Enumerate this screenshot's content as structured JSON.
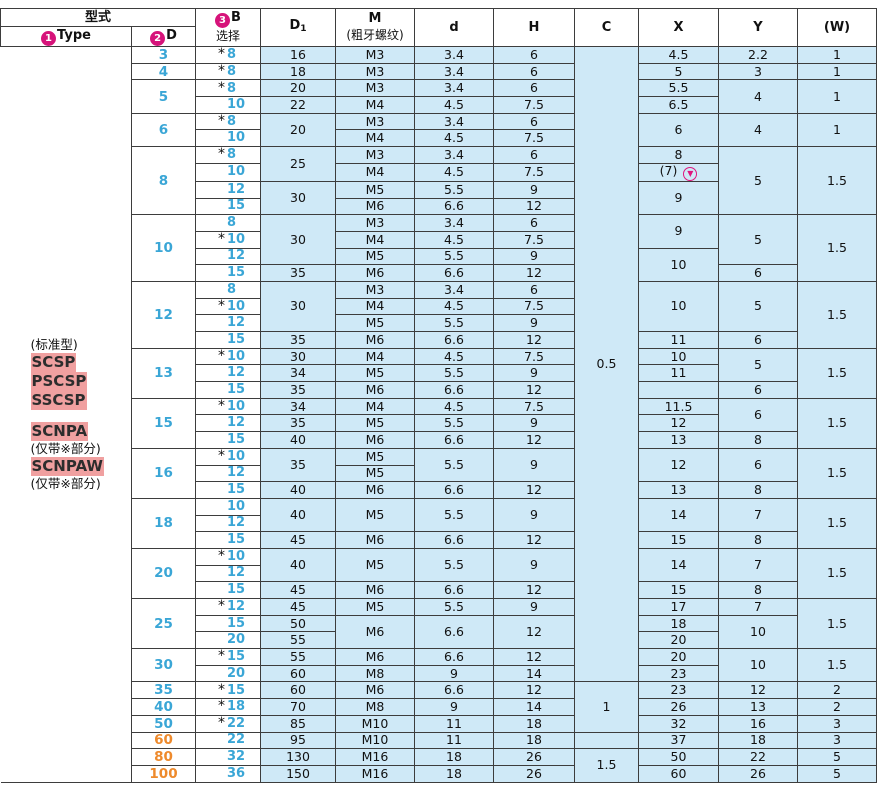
{
  "header": {
    "form_label": "型式",
    "type_num": "1",
    "type_label": "Type",
    "d_num": "2",
    "d_label": "D",
    "b_num": "3",
    "b_label": "B",
    "b_sub": "选择",
    "d1_main": "D",
    "d1_sub": "1",
    "m_label": "M",
    "m_sub": "(粗牙螺纹)",
    "d_small": "d",
    "h_label": "H",
    "c_label": "C",
    "x_label": "X",
    "y_label": "Y",
    "w_label": "(W)"
  },
  "types": {
    "standard": "(标准型)",
    "t1": "SCSP",
    "t2": "PSCSP",
    "t3": "SSCSP",
    "t4": "SCNPA",
    "t4_note": "(仅带※部分)",
    "t5": "SCNPAW",
    "t5_note": "(仅带※部分)"
  },
  "asterisk": "*",
  "x_alt_icon": "pin-icon",
  "rows": [
    {
      "D": "3",
      "B": "8",
      "s": true,
      "D1": "16",
      "M": "M3",
      "d": "3.4",
      "H": "6",
      "C": "0.5",
      "X": "4.5",
      "Y": "2.2",
      "W": "1"
    },
    {
      "D": "4",
      "B": "8",
      "s": true,
      "D1": "18",
      "M": "M3",
      "d": "3.4",
      "H": "6",
      "X": "5",
      "Y": "3",
      "W": "1"
    },
    {
      "D": "5",
      "B": "8",
      "s": true,
      "D1": "20",
      "M": "M3",
      "d": "3.4",
      "H": "6",
      "X": "5.5",
      "Y": "4",
      "W": "1"
    },
    {
      "B": "10",
      "s": false,
      "D1": "22",
      "M": "M4",
      "d": "4.5",
      "H": "7.5",
      "X": "6.5"
    },
    {
      "D": "6",
      "B": "8",
      "s": true,
      "D1": "20",
      "M": "M3",
      "d": "3.4",
      "H": "6",
      "X": "6",
      "Y": "4",
      "W": "1"
    },
    {
      "B": "10",
      "s": false,
      "M": "M4",
      "d": "4.5",
      "H": "7.5"
    },
    {
      "D": "8",
      "B": "8",
      "s": true,
      "D1": "25",
      "M": "M3",
      "d": "3.4",
      "H": "6",
      "X": "8",
      "Y": "5",
      "W": "1.5"
    },
    {
      "B": "10",
      "s": false,
      "M": "M4",
      "d": "4.5",
      "H": "7.5",
      "X_alt": "(7)"
    },
    {
      "B": "12",
      "s": false,
      "D1": "30",
      "M": "M5",
      "d": "5.5",
      "H": "9",
      "X": "9"
    },
    {
      "B": "15",
      "s": false,
      "M": "M6",
      "d": "6.6",
      "H": "12"
    },
    {
      "D": "10",
      "B": "8",
      "s": false,
      "D1": "30",
      "M": "M3",
      "d": "3.4",
      "H": "6",
      "X": "9",
      "Y": "5",
      "W": "1.5"
    },
    {
      "B": "10",
      "s": true,
      "M": "M4",
      "d": "4.5",
      "H": "7.5"
    },
    {
      "B": "12",
      "s": false,
      "M": "M5",
      "d": "5.5",
      "H": "9",
      "X": "10"
    },
    {
      "B": "15",
      "s": false,
      "D1": "35",
      "M": "M6",
      "d": "6.6",
      "H": "12",
      "Y": "6"
    },
    {
      "D": "12",
      "B": "8",
      "s": false,
      "D1": "30",
      "M": "M3",
      "d": "3.4",
      "H": "6",
      "X": "10",
      "Y": "5",
      "W": "1.5"
    },
    {
      "B": "10",
      "s": true,
      "M": "M4",
      "d": "4.5",
      "H": "7.5"
    },
    {
      "B": "12",
      "s": false,
      "M": "M5",
      "d": "5.5",
      "H": "9"
    },
    {
      "B": "15",
      "s": false,
      "D1": "35",
      "M": "M6",
      "d": "6.6",
      "H": "12",
      "X": "11",
      "Y": "6"
    },
    {
      "D": "13",
      "B": "10",
      "s": true,
      "D1": "30",
      "M": "M4",
      "d": "4.5",
      "H": "7.5",
      "X": "10",
      "Y": "5",
      "W": "1.5"
    },
    {
      "B": "12",
      "s": false,
      "D1": "34",
      "M": "M5",
      "d": "5.5",
      "H": "9",
      "X": "11"
    },
    {
      "B": "15",
      "s": false,
      "D1": "35",
      "M": "M6",
      "d": "6.6",
      "H": "12",
      "Y": "6"
    },
    {
      "D": "15",
      "B": "10",
      "s": true,
      "D1": "34",
      "M": "M4",
      "d": "4.5",
      "H": "7.5",
      "X": "11.5",
      "Y": "6",
      "W": "1.5"
    },
    {
      "B": "12",
      "s": false,
      "D1": "35",
      "M": "M5",
      "d": "5.5",
      "H": "9",
      "X": "12"
    },
    {
      "B": "15",
      "s": false,
      "D1": "40",
      "M": "M6",
      "d": "6.6",
      "H": "12",
      "X": "13",
      "Y": "8"
    },
    {
      "D": "16",
      "B": "10",
      "s": true,
      "D1": "35",
      "M": "M5",
      "d": "5.5",
      "H": "9",
      "X": "12",
      "Y": "6",
      "W": "1.5"
    },
    {
      "B": "12",
      "s": false,
      "M": "M5"
    },
    {
      "B": "15",
      "s": false,
      "D1": "40",
      "M": "M6",
      "d": "6.6",
      "H": "12",
      "X": "13",
      "Y": "8"
    },
    {
      "D": "18",
      "B": "10",
      "s": false,
      "D1": "40",
      "M": "M5",
      "d": "5.5",
      "H": "9",
      "X": "14",
      "Y": "7",
      "W": "1.5"
    },
    {
      "B": "12",
      "s": false
    },
    {
      "B": "15",
      "s": false,
      "D1": "45",
      "M": "M6",
      "d": "6.6",
      "H": "12",
      "X": "15",
      "Y": "8"
    },
    {
      "D": "20",
      "B": "10",
      "s": true,
      "D1": "40",
      "M": "M5",
      "d": "5.5",
      "H": "9",
      "X": "14",
      "Y": "7",
      "W": "1.5"
    },
    {
      "B": "12",
      "s": false
    },
    {
      "B": "15",
      "s": false,
      "D1": "45",
      "M": "M6",
      "d": "6.6",
      "H": "12",
      "X": "15",
      "Y": "8"
    },
    {
      "D": "25",
      "B": "12",
      "s": true,
      "D1": "45",
      "M": "M5",
      "d": "5.5",
      "H": "9",
      "X": "17",
      "Y": "7",
      "W": "1.5"
    },
    {
      "B": "15",
      "s": false,
      "D1": "50",
      "M": "M6",
      "d": "6.6",
      "H": "12",
      "X": "18",
      "Y": "10"
    },
    {
      "B": "20",
      "s": false,
      "D1": "55",
      "X": "20"
    },
    {
      "D": "30",
      "B": "15",
      "s": true,
      "D1": "55",
      "M": "M6",
      "d": "6.6",
      "H": "12",
      "X": "20",
      "Y": "10",
      "W": "1.5"
    },
    {
      "B": "20",
      "s": false,
      "D1": "60",
      "M": "M8",
      "d": "9",
      "H": "14",
      "X": "23"
    },
    {
      "D": "35",
      "B": "15",
      "s": true,
      "D1": "60",
      "M": "M6",
      "d": "6.6",
      "H": "12",
      "C": "1",
      "X": "23",
      "Y": "12",
      "W": "2"
    },
    {
      "D": "40",
      "B": "18",
      "s": true,
      "D1": "70",
      "M": "M8",
      "d": "9",
      "H": "14",
      "X": "26",
      "Y": "13",
      "W": "2"
    },
    {
      "D": "50",
      "B": "22",
      "s": true,
      "D1": "85",
      "M": "M10",
      "d": "11",
      "H": "18",
      "X": "32",
      "Y": "16",
      "W": "3"
    },
    {
      "D": "60",
      "B": "22",
      "s": false,
      "D1": "95",
      "M": "M10",
      "d": "11",
      "H": "18",
      "X": "37",
      "Y": "18",
      "W": "3"
    },
    {
      "D": "80",
      "B": "32",
      "s": false,
      "D1": "130",
      "M": "M16",
      "d": "18",
      "H": "26",
      "C": "1.5",
      "X": "50",
      "Y": "22",
      "W": "5"
    },
    {
      "D": "100",
      "B": "36",
      "s": false,
      "D1": "150",
      "M": "M16",
      "d": "18",
      "H": "26",
      "X": "60",
      "Y": "26",
      "W": "5"
    }
  ]
}
